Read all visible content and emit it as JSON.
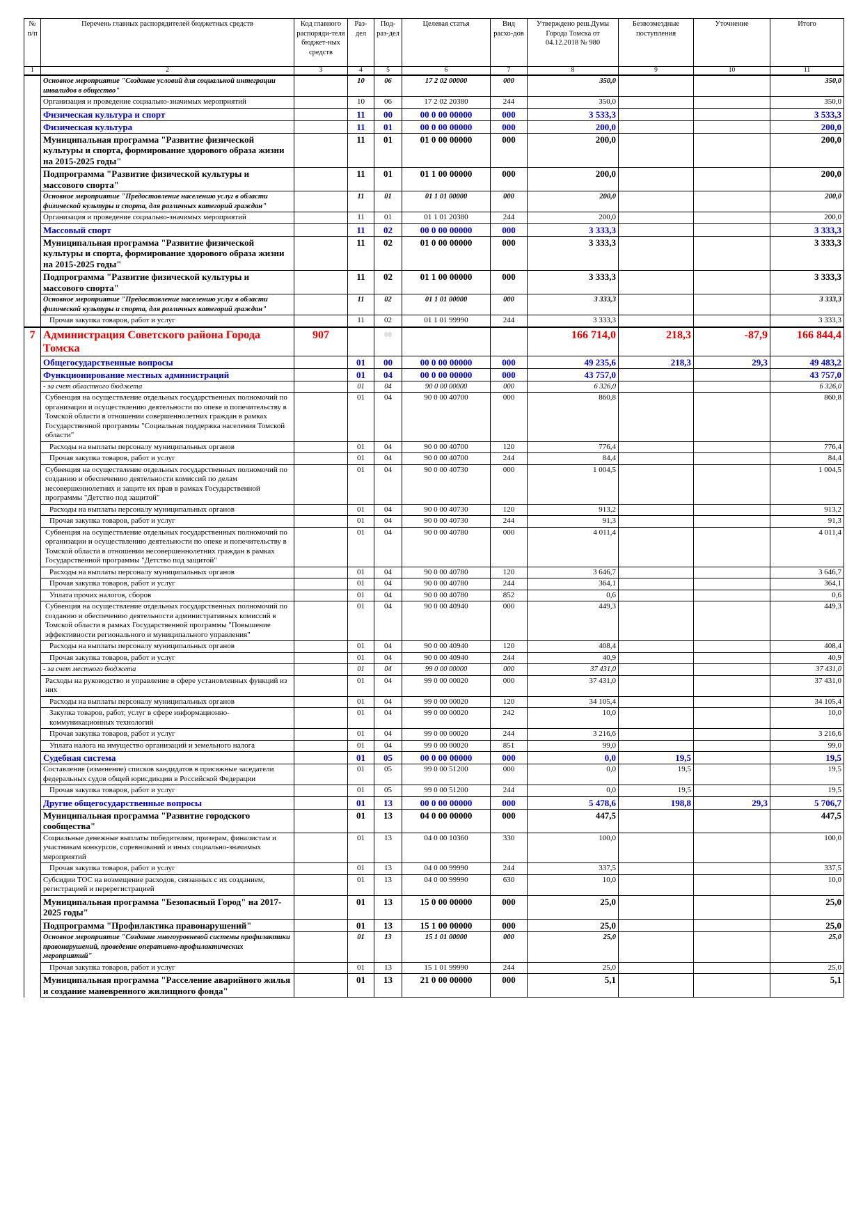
{
  "header": [
    "№ п/п",
    "Перечень главных распорядителей бюджетных средств",
    "Код главного распоряди-теля бюджет-ных средств",
    "Раз-дел",
    "Под-раз-дел",
    "Целевая статья",
    "Вид расхо-дов",
    "Утверждено реш.Думы Города Томска от 04.12.2018 № 980",
    "Безвозмездные поступления",
    "Уточнение",
    "Итого"
  ],
  "colnums": [
    1,
    2,
    3,
    4,
    5,
    6,
    7,
    8,
    9,
    10,
    11
  ],
  "rows": [
    {
      "style": "ib",
      "name": "Основное мероприятие \"Создание условий для социальной интеграции инвалидов в общество\"",
      "rz": "10",
      "prz": "06",
      "cs": "17 2 02 00000",
      "vid": "000",
      "v8": "350,0",
      "v11": "350,0"
    },
    {
      "style": "p",
      "name": "Организация и проведение социально-значимых мероприятий",
      "rz": "10",
      "prz": "06",
      "cs": "17 2 02 20380",
      "vid": "244",
      "v8": "350,0",
      "v11": "350,0"
    },
    {
      "style": "blue",
      "name": "Физическая культура и спорт",
      "rz": "11",
      "prz": "00",
      "cs": "00 0 00 00000",
      "vid": "000",
      "v8": "3 533,3",
      "v11": "3 533,3"
    },
    {
      "style": "blue",
      "name": "Физическая культура",
      "rz": "11",
      "prz": "01",
      "cs": "00 0 00 00000",
      "vid": "000",
      "v8": "200,0",
      "v11": "200,0"
    },
    {
      "style": "b",
      "name": "Муниципальная программа \"Развитие физической культуры и спорта, формирование здорового образа жизни на 2015-2025 годы\"",
      "rz": "11",
      "prz": "01",
      "cs": "01 0 00 00000",
      "vid": "000",
      "v8": "200,0",
      "v11": "200,0"
    },
    {
      "style": "b",
      "name": "Подпрограмма \"Развитие физической культуры и массового спорта\"",
      "rz": "11",
      "prz": "01",
      "cs": "01 1 00 00000",
      "vid": "000",
      "v8": "200,0",
      "v11": "200,0"
    },
    {
      "style": "ib",
      "name": "Основное мероприятие \"Предоставление населению услуг в области физической культуры и спорта, для различных категорий граждан\"",
      "rz": "11",
      "prz": "01",
      "cs": "01 1 01 00000",
      "vid": "000",
      "v8": "200,0",
      "v11": "200,0"
    },
    {
      "style": "p",
      "name": "Организация и проведение социально-значимых мероприятий",
      "rz": "11",
      "prz": "01",
      "cs": "01 1 01 20380",
      "vid": "244",
      "v8": "200,0",
      "v11": "200,0"
    },
    {
      "style": "blue",
      "name": "Массовый спорт",
      "rz": "11",
      "prz": "02",
      "cs": "00 0 00 00000",
      "vid": "000",
      "v8": "3 333,3",
      "v11": "3 333,3"
    },
    {
      "style": "b",
      "name": "Муниципальная программа \"Развитие физической культуры и спорта, формирование здорового образа жизни на 2015-2025 годы\"",
      "rz": "11",
      "prz": "02",
      "cs": "01 0 00 00000",
      "vid": "000",
      "v8": "3 333,3",
      "v11": "3 333,3"
    },
    {
      "style": "b",
      "name": "Подпрограмма \"Развитие физической культуры и массового спорта\"",
      "rz": "11",
      "prz": "02",
      "cs": "01 1 00 00000",
      "vid": "000",
      "v8": "3 333,3",
      "v11": "3 333,3"
    },
    {
      "style": "ib",
      "name": "Основное мероприятие \"Предоставление населению услуг в области физической культуры и спорта, для различных категорий граждан\"",
      "rz": "11",
      "prz": "02",
      "cs": "01 1 01 00000",
      "vid": "000",
      "v8": "3 333,3",
      "v11": "3 333,3"
    },
    {
      "style": "p",
      "name": "Прочая закупка товаров, работ и услуг",
      "rz": "11",
      "prz": "02",
      "cs": "01 1 01 99990",
      "vid": "244",
      "v8": "3 333,3",
      "v11": "3 333,3"
    },
    {
      "style": "red",
      "num": "7",
      "name": "Администрация Советского района Города Томска",
      "code": "907",
      "prz": "00",
      "v8": "166 714,0",
      "v9": "218,3",
      "v10": "-87,9",
      "v11": "166 844,4"
    },
    {
      "style": "blue",
      "name": "Общегосударственные вопросы",
      "rz": "01",
      "prz": "00",
      "cs": "00 0 00 00000",
      "vid": "000",
      "v8": "49 235,6",
      "v9": "218,3",
      "v10": "29,3",
      "v11": "49 483,2"
    },
    {
      "style": "blue",
      "name": "Функционирование местных администраций",
      "rz": "01",
      "prz": "04",
      "cs": "00 0 00 00000",
      "vid": "000",
      "v8": "43 757,0",
      "v11": "43 757,0"
    },
    {
      "style": "it",
      "name": "- за счет областного бюджета",
      "rz": "01",
      "prz": "04",
      "cs": "90 0 00 00000",
      "vid": "000",
      "v8": "6 326,0",
      "v11": "6 326,0"
    },
    {
      "style": "p",
      "name": "Субвенция на осуществление отдельных государственных полномочий по организации и осуществлению деятельности по опеке и попечительству в Томской области в отношении совершеннолетних граждан в рамках Государственной программы \"Социальная поддержка населения Томской области\"",
      "rz": "01",
      "prz": "04",
      "cs": "90 0 00 40700",
      "vid": "000",
      "v8": "860,8",
      "v11": "860,8"
    },
    {
      "style": "p",
      "name": "Расходы на выплаты персоналу муниципальных органов",
      "rz": "01",
      "prz": "04",
      "cs": "90 0 00 40700",
      "vid": "120",
      "v8": "776,4",
      "v11": "776,4"
    },
    {
      "style": "p",
      "name": "Прочая закупка товаров, работ и услуг",
      "rz": "01",
      "prz": "04",
      "cs": "90 0 00 40700",
      "vid": "244",
      "v8": "84,4",
      "v11": "84,4"
    },
    {
      "style": "p",
      "name": "Субвенция на осуществление отдельных государственных полномочий по созданию и обеспечению деятельности комиссий по делам несовершеннолетних и защите их прав в рамках Государственной программы \"Детство под защитой\"",
      "rz": "01",
      "prz": "04",
      "cs": "90 0 00 40730",
      "vid": "000",
      "v8": "1 004,5",
      "v11": "1 004,5"
    },
    {
      "style": "p",
      "name": "Расходы на выплаты персоналу муниципальных органов",
      "rz": "01",
      "prz": "04",
      "cs": "90 0 00 40730",
      "vid": "120",
      "v8": "913,2",
      "v11": "913,2"
    },
    {
      "style": "p",
      "name": "Прочая закупка товаров, работ и услуг",
      "rz": "01",
      "prz": "04",
      "cs": "90 0 00 40730",
      "vid": "244",
      "v8": "91,3",
      "v11": "91,3"
    },
    {
      "style": "p",
      "name": "Субвенция на осуществление отдельных государственных полномочий по организации и осуществлению деятельности по опеке и попечительству в Томской области в отношении несовершеннолетних граждан в рамках Государственной программы \"Детство под защитой\"",
      "rz": "01",
      "prz": "04",
      "cs": "90 0 00 40780",
      "vid": "000",
      "v8": "4 011,4",
      "v11": "4 011,4"
    },
    {
      "style": "p",
      "name": "Расходы на выплаты персоналу муниципальных органов",
      "rz": "01",
      "prz": "04",
      "cs": "90 0 00 40780",
      "vid": "120",
      "v8": "3 646,7",
      "v11": "3 646,7"
    },
    {
      "style": "p",
      "name": "Прочая закупка товаров, работ и услуг",
      "rz": "01",
      "prz": "04",
      "cs": "90 0 00 40780",
      "vid": "244",
      "v8": "364,1",
      "v11": "364,1"
    },
    {
      "style": "p",
      "name": "Уплата прочих налогов, сборов",
      "rz": "01",
      "prz": "04",
      "cs": "90 0 00 40780",
      "vid": "852",
      "v8": "0,6",
      "v11": "0,6"
    },
    {
      "style": "p",
      "name": "Субвенция на осуществление отдельных государственных полномочий по созданию и обеспечению деятельности административных комиссий в Томской области в рамках Государственной программы \"Повышение эффективности регионального и муниципального управления\"",
      "rz": "01",
      "prz": "04",
      "cs": "90 0 00 40940",
      "vid": "000",
      "v8": "449,3",
      "v11": "449,3"
    },
    {
      "style": "p",
      "name": "Расходы на выплаты персоналу муниципальных органов",
      "rz": "01",
      "prz": "04",
      "cs": "90 0 00 40940",
      "vid": "120",
      "v8": "408,4",
      "v11": "408,4"
    },
    {
      "style": "p",
      "name": "Прочая закупка товаров, работ и услуг",
      "rz": "01",
      "prz": "04",
      "cs": "90 0 00 40940",
      "vid": "244",
      "v8": "40,9",
      "v11": "40,9"
    },
    {
      "style": "it",
      "name": "- за счет местного бюджета",
      "rz": "01",
      "prz": "04",
      "cs": "99 0 00 00000",
      "vid": "000",
      "v8": "37 431,0",
      "v11": "37 431,0"
    },
    {
      "style": "p",
      "name": "Расходы на руководство и управление в сфере установленных функций из них",
      "rz": "01",
      "prz": "04",
      "cs": "99 0 00 00020",
      "vid": "000",
      "v8": "37 431,0",
      "v11": "37 431,0"
    },
    {
      "style": "p",
      "name": "Расходы на выплаты персоналу муниципальных органов",
      "rz": "01",
      "prz": "04",
      "cs": "99 0 00 00020",
      "vid": "120",
      "v8": "34 105,4",
      "v11": "34 105,4"
    },
    {
      "style": "p",
      "name": "Закупка товаров, работ, услуг в сфере информационно-коммуникационных технологий",
      "rz": "01",
      "prz": "04",
      "cs": "99 0 00 00020",
      "vid": "242",
      "v8": "10,0",
      "v11": "10,0"
    },
    {
      "style": "p",
      "name": "Прочая закупка товаров, работ и услуг",
      "rz": "01",
      "prz": "04",
      "cs": "99 0 00 00020",
      "vid": "244",
      "v8": "3 216,6",
      "v11": "3 216,6"
    },
    {
      "style": "p",
      "name": "Уплата налога на имущество организаций и земельного налога",
      "rz": "01",
      "prz": "04",
      "cs": "99 0 00 00020",
      "vid": "851",
      "v8": "99,0",
      "v11": "99,0"
    },
    {
      "style": "blue",
      "name": "Судебная система",
      "rz": "01",
      "prz": "05",
      "cs": "00 0 00 00000",
      "vid": "000",
      "v8": "0,0",
      "v9": "19,5",
      "v11": "19,5"
    },
    {
      "style": "p",
      "name": "Составление (изменение) списков кандидатов в присяжные заседатели федеральных судов общей юрисдикции в Российской Федерации",
      "rz": "01",
      "prz": "05",
      "cs": "99 0 00 51200",
      "vid": "000",
      "v8": "0,0",
      "v9": "19,5",
      "v11": "19,5"
    },
    {
      "style": "p",
      "name": "Прочая закупка товаров, работ и услуг",
      "rz": "01",
      "prz": "05",
      "cs": "99 0 00 51200",
      "vid": "244",
      "v8": "0,0",
      "v9": "19,5",
      "v11": "19,5"
    },
    {
      "style": "blue",
      "name": "Другие общегосударственные вопросы",
      "rz": "01",
      "prz": "13",
      "cs": "00 0 00 00000",
      "vid": "000",
      "v8": "5 478,6",
      "v9": "198,8",
      "v10": "29,3",
      "v11": "5 706,7"
    },
    {
      "style": "b",
      "name": "Муниципальная программа \"Развитие городского сообщества\"",
      "rz": "01",
      "prz": "13",
      "cs": "04 0 00 00000",
      "vid": "000",
      "v8": "447,5",
      "v11": "447,5"
    },
    {
      "style": "p",
      "name": "Социальные денежные выплаты победителям, призерам, финалистам и участникам конкурсов, соревнований и иных социально-значимых мероприятий",
      "rz": "01",
      "prz": "13",
      "cs": "04 0 00 10360",
      "vid": "330",
      "v8": "100,0",
      "v11": "100,0"
    },
    {
      "style": "p",
      "name": "Прочая закупка товаров, работ и услуг",
      "rz": "01",
      "prz": "13",
      "cs": "04 0 00 99990",
      "vid": "244",
      "v8": "337,5",
      "v11": "337,5"
    },
    {
      "style": "p",
      "name": "Субсидии ТОС на возмещение расходов, связанных с их созданием, регистрацией и перерегистрацией",
      "rz": "01",
      "prz": "13",
      "cs": "04 0 00 99990",
      "vid": "630",
      "v8": "10,0",
      "v11": "10,0"
    },
    {
      "style": "b",
      "name": "Муниципальная программа \"Безопасный Город\" на 2017- 2025 годы\"",
      "rz": "01",
      "prz": "13",
      "cs": "15 0 00 00000",
      "vid": "000",
      "v8": "25,0",
      "v11": "25,0"
    },
    {
      "style": "b",
      "name": "Подпрограмма \"Профилактика правонарушений\"",
      "rz": "01",
      "prz": "13",
      "cs": "15 1 00 00000",
      "vid": "000",
      "v8": "25,0",
      "v11": "25,0"
    },
    {
      "style": "ib",
      "name": "Основное мероприятие \"Создание многоуровневой системы профилактики правонарушений, проведение оперативно-профилактических мероприятий\"",
      "rz": "01",
      "prz": "13",
      "cs": "15 1 01 00000",
      "vid": "000",
      "v8": "25,0",
      "v11": "25,0"
    },
    {
      "style": "p",
      "name": "Прочая закупка товаров, работ и услуг",
      "rz": "01",
      "prz": "13",
      "cs": "15 1 01 99990",
      "vid": "244",
      "v8": "25,0",
      "v11": "25,0"
    },
    {
      "style": "b",
      "name": "Муниципальная программа \"Расселение аварийного жилья и создание маневренного жилищного фонда\"",
      "rz": "01",
      "prz": "13",
      "cs": "21 0 00 00000",
      "vid": "000",
      "v8": "5,1",
      "v11": "5,1"
    }
  ]
}
